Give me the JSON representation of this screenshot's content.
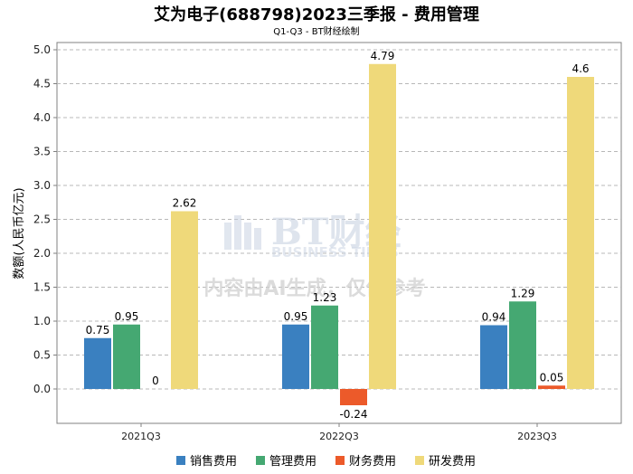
{
  "chart_data": {
    "type": "bar",
    "title": "艾为电子(688798)2023三季报 - 费用管理",
    "subtitle": "Q1-Q3 - BT财经绘制",
    "xlabel": "",
    "ylabel": "数额(人民币亿元)",
    "ylim": [
      -0.5,
      5.0
    ],
    "yticks": [
      0.0,
      0.5,
      1.0,
      1.5,
      2.0,
      2.5,
      3.0,
      3.5,
      4.0,
      4.5,
      5.0
    ],
    "ytick_labels": [
      "0.0",
      "0.5",
      "1.0",
      "1.5",
      "2.0",
      "2.5",
      "3.0",
      "3.5",
      "4.0",
      "4.5",
      "5.0"
    ],
    "grid": true,
    "legend_position": "bottom",
    "categories": [
      "2021Q3",
      "2022Q3",
      "2023Q3"
    ],
    "series": [
      {
        "name": "销售费用",
        "color": "#3a80c0",
        "values": [
          0.75,
          0.95,
          0.94
        ],
        "labels": [
          "0.75",
          "0.95",
          "0.94"
        ]
      },
      {
        "name": "管理费用",
        "color": "#45a872",
        "values": [
          0.95,
          1.23,
          1.29
        ],
        "labels": [
          "0.95",
          "1.23",
          "1.29"
        ]
      },
      {
        "name": "财务费用",
        "color": "#ec5a2a",
        "values": [
          0,
          -0.24,
          0.05
        ],
        "labels": [
          "0",
          "-0.24",
          "0.05"
        ]
      },
      {
        "name": "研发费用",
        "color": "#efd97a",
        "values": [
          2.62,
          4.79,
          4.6
        ],
        "labels": [
          "2.62",
          "4.79",
          "4.6"
        ]
      }
    ]
  },
  "watermark": {
    "brand": "BT财经",
    "brand_en": "BUSINESS TIMES",
    "note": "内容由AI生成，仅供参考"
  }
}
